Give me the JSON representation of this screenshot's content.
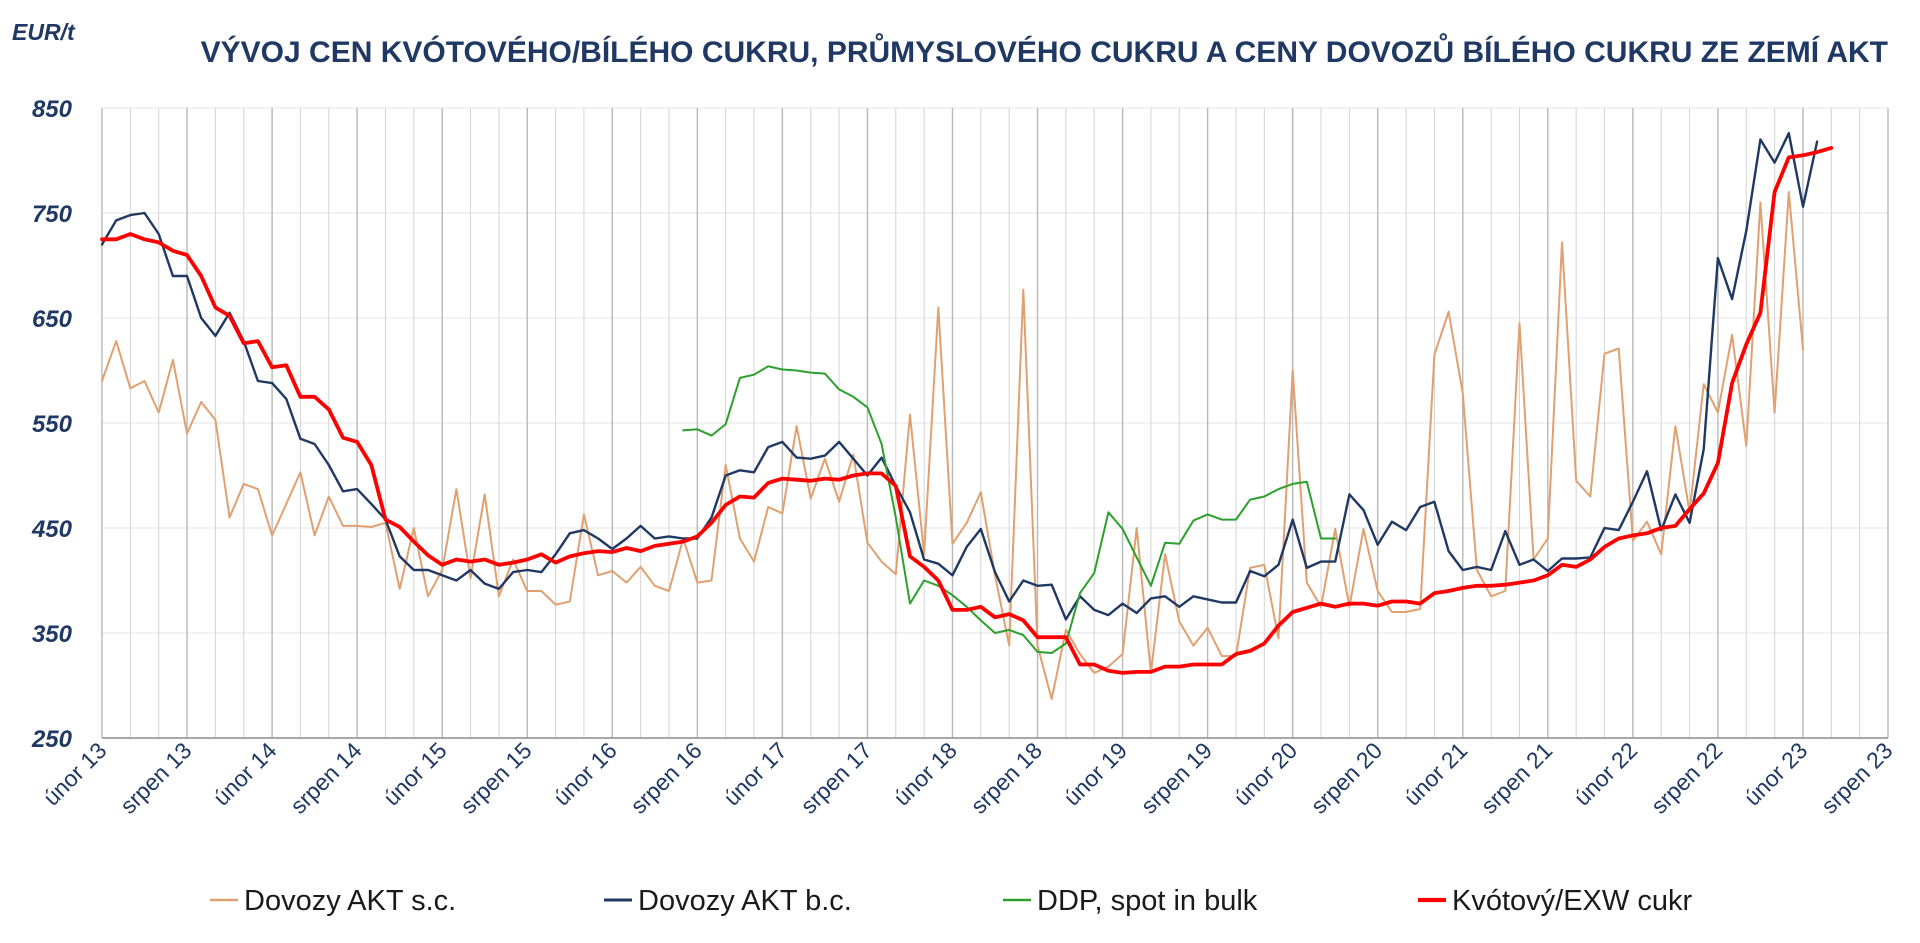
{
  "chart_data": {
    "type": "line",
    "title": "VÝVOJ CEN KVÓTOVÉHO/BÍLÉHO CUKRU, PRŮMYSLOVÉHO CUKRU A CENY DOVOZŮ BÍLÉHO CUKRU ZE ZEMÍ AKT",
    "ylabel": "EUR/t",
    "xlabel": "",
    "ylim": [
      250,
      850
    ],
    "yticks": [
      250,
      350,
      450,
      550,
      650,
      750,
      850
    ],
    "x_start": "2013-02",
    "x_end": "2023-08",
    "xtick_labels": [
      "únor 13",
      "srpen 13",
      "únor 14",
      "srpen 14",
      "únor 15",
      "srpen 15",
      "únor 16",
      "srpen 16",
      "únor 17",
      "srpen 17",
      "únor 18",
      "srpen 18",
      "únor 19",
      "srpen 19",
      "únor 20",
      "srpen 20",
      "únor 21",
      "srpen 21",
      "únor 22",
      "srpen 22",
      "únor 23",
      "srpen 23"
    ],
    "grid": "vertical",
    "legend_position": "bottom",
    "series": [
      {
        "name": "Dovozy AKT s.c.",
        "color": "#e0a070",
        "start": "2013-02",
        "values": [
          590,
          628,
          583,
          590,
          560,
          610,
          540,
          570,
          553,
          460,
          492,
          487,
          443,
          473,
          503,
          443,
          480,
          452,
          452,
          451,
          455,
          392,
          450,
          385,
          410,
          487,
          402,
          482,
          385,
          420,
          390,
          390,
          377,
          380,
          463,
          405,
          409,
          398,
          413,
          395,
          390,
          440,
          398,
          400,
          510,
          440,
          418,
          470,
          464,
          547,
          478,
          516,
          475,
          520,
          436,
          418,
          406,
          558,
          425,
          660,
          435,
          455,
          484,
          405,
          338,
          677,
          338,
          287,
          353,
          330,
          312,
          318,
          330,
          450,
          312,
          425,
          361,
          338,
          355,
          328,
          328,
          412,
          415,
          345,
          600,
          398,
          375,
          449,
          375,
          449,
          390,
          370,
          370,
          373,
          615,
          656,
          578,
          410,
          385,
          390,
          645,
          420,
          440,
          722,
          495,
          480,
          616,
          621,
          438,
          456,
          425,
          547,
          465,
          587,
          560,
          634,
          528,
          760,
          560,
          770,
          620
        ]
      },
      {
        "name": "Dovozy AKT b.c.",
        "color": "#1f3864",
        "start": "2013-02",
        "values": [
          720,
          743,
          748,
          750,
          730,
          690,
          690,
          650,
          633,
          655,
          628,
          590,
          588,
          573,
          535,
          530,
          510,
          485,
          487,
          473,
          458,
          423,
          410,
          410,
          405,
          400,
          410,
          397,
          392,
          408,
          410,
          408,
          425,
          445,
          448,
          440,
          430,
          440,
          452,
          440,
          442,
          440,
          440,
          460,
          500,
          505,
          503,
          527,
          532,
          517,
          516,
          519,
          532,
          516,
          500,
          517,
          490,
          465,
          420,
          416,
          405,
          432,
          449,
          408,
          380,
          400,
          395,
          396,
          363,
          385,
          372,
          367,
          378,
          369,
          383,
          385,
          375,
          385,
          382,
          379,
          379,
          409,
          404,
          415,
          458,
          412,
          418,
          418,
          482,
          467,
          434,
          456,
          448,
          470,
          475,
          428,
          410,
          413,
          410,
          447,
          415,
          420,
          409,
          421,
          421,
          422,
          450,
          448,
          475,
          504,
          448,
          482,
          455,
          525,
          707,
          668,
          733,
          820,
          798,
          826,
          756,
          818
        ]
      },
      {
        "name": "DDP, spot in bulk",
        "color": "#2ca02c",
        "start": "2016-07",
        "values": [
          543,
          544,
          538,
          549,
          593,
          596,
          604,
          601,
          600,
          598,
          597,
          582,
          575,
          565,
          530,
          460,
          378,
          400,
          395,
          386,
          375,
          362,
          350,
          353,
          348,
          332,
          331,
          340,
          388,
          407,
          465,
          449,
          422,
          395,
          436,
          435,
          457,
          463,
          458,
          458,
          477,
          480,
          487,
          492,
          494,
          440,
          440
        ]
      },
      {
        "name": "Kvótový/EXW cukr",
        "color": "#ff0000",
        "start": "2013-02",
        "values": [
          725,
          725,
          730,
          725,
          722,
          714,
          710,
          690,
          660,
          652,
          626,
          628,
          603,
          605,
          575,
          575,
          563,
          536,
          532,
          510,
          458,
          451,
          437,
          424,
          415,
          420,
          418,
          420,
          415,
          417,
          420,
          425,
          417,
          423,
          426,
          428,
          427,
          431,
          428,
          433,
          435,
          437,
          442,
          455,
          472,
          480,
          479,
          493,
          497,
          496,
          495,
          497,
          496,
          500,
          502,
          502,
          490,
          423,
          413,
          400,
          372,
          372,
          375,
          365,
          368,
          362,
          346,
          346,
          346,
          320,
          320,
          314,
          312,
          313,
          313,
          318,
          318,
          320,
          320,
          320,
          330,
          333,
          340,
          357,
          370,
          374,
          378,
          375,
          378,
          378,
          376,
          380,
          380,
          378,
          388,
          390,
          393,
          395,
          395,
          396,
          398,
          400,
          405,
          415,
          413,
          420,
          432,
          440,
          443,
          445,
          450,
          452,
          468,
          483,
          512,
          588,
          625,
          655,
          770,
          803,
          805,
          808,
          812
        ]
      }
    ]
  },
  "legend": {
    "items": [
      {
        "label": "Dovozy AKT s.c."
      },
      {
        "label": "Dovozy AKT b.c."
      },
      {
        "label": "DDP, spot in bulk"
      },
      {
        "label": "Kvótový/EXW cukr"
      }
    ]
  }
}
